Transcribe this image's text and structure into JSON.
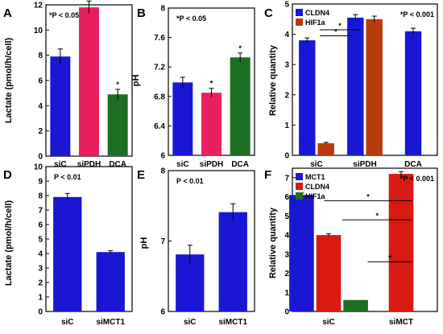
{
  "figure": {
    "panels": [
      {
        "id": "A",
        "label": "A"
      },
      {
        "id": "B",
        "label": "B"
      },
      {
        "id": "C",
        "label": "C"
      },
      {
        "id": "D",
        "label": "D"
      },
      {
        "id": "E",
        "label": "E"
      },
      {
        "id": "F",
        "label": "F"
      }
    ]
  },
  "chart_data": [
    {
      "panel": "A",
      "type": "bar",
      "ylabel": "Lactate (pmol/h/cell)",
      "annotation": "*P < 0.05",
      "ylim": [
        0,
        12
      ],
      "yticks": [
        0,
        2,
        4,
        6,
        8,
        10,
        12
      ],
      "categories": [
        "siC",
        "siPDH",
        "DCA"
      ],
      "values": [
        7.9,
        11.8,
        4.9
      ],
      "errors": [
        0.6,
        0.5,
        0.4
      ],
      "stars": [
        "",
        "*",
        "*"
      ],
      "colors": [
        "#1a17d4",
        "#e8215e",
        "#1e6e22"
      ]
    },
    {
      "panel": "B",
      "type": "bar",
      "ylabel": "pH",
      "annotation": "*P < 0.05",
      "ylim": [
        6.0,
        8.0
      ],
      "yticks": [
        6,
        6.4,
        6.8,
        7.2,
        7.6,
        8
      ],
      "categories": [
        "siC",
        "siPDH",
        "DCA"
      ],
      "values": [
        6.99,
        6.85,
        7.33
      ],
      "errors": [
        0.07,
        0.06,
        0.06
      ],
      "stars": [
        "",
        "*",
        "*"
      ],
      "colors": [
        "#1a17d4",
        "#e8215e",
        "#1e6e22"
      ]
    },
    {
      "panel": "C",
      "type": "bar",
      "ylabel": "Relative quantity",
      "annotation": "*P < 0.001",
      "ylim": [
        0,
        5
      ],
      "yticks": [
        0,
        1,
        2,
        3,
        4,
        5
      ],
      "categories": [
        "siC",
        "siPDH",
        "DCA"
      ],
      "series": [
        {
          "name": "CLDN4",
          "color": "#1a17d4",
          "values": [
            3.8,
            4.55,
            4.1
          ],
          "errors": [
            0.08,
            0.1,
            0.1
          ]
        },
        {
          "name": "HIF1a",
          "color": "#b83a0d",
          "values": [
            0.4,
            4.5,
            null
          ],
          "errors": [
            0.03,
            0.1,
            null
          ]
        }
      ],
      "brackets": [
        {
          "from": "siC",
          "to": "siPDH",
          "level": 4.15,
          "star": "*"
        },
        {
          "from": "siC",
          "to": "siPDH",
          "level": 3.95,
          "star": "*"
        }
      ],
      "legend": "top-left"
    },
    {
      "panel": "D",
      "type": "bar",
      "ylabel": "Lactate (pmol/h/cell)",
      "annotation": "P < 0.01",
      "ylim": [
        0,
        10
      ],
      "yticks": [
        0,
        1,
        2,
        3,
        4,
        5,
        6,
        7,
        8,
        9,
        10
      ],
      "categories": [
        "siC",
        "siMCT1"
      ],
      "values": [
        7.9,
        4.1
      ],
      "errors": [
        0.25,
        0.1
      ],
      "colors": [
        "#1a17d4",
        "#1a17d4"
      ]
    },
    {
      "panel": "E",
      "type": "bar",
      "ylabel": "pH",
      "annotation": "P < 0.01",
      "ylim": [
        6.0,
        8.0
      ],
      "yticks": [
        6,
        7,
        8
      ],
      "categories": [
        "siC",
        "siMCT1"
      ],
      "values": [
        6.81,
        7.41
      ],
      "errors": [
        0.13,
        0.12
      ],
      "colors": [
        "#1a17d4",
        "#1a17d4"
      ]
    },
    {
      "panel": "F",
      "type": "bar",
      "ylabel": "Relative quantity",
      "annotation": "*P < 0.001",
      "ylim": [
        0,
        7.5
      ],
      "yticks": [
        0,
        1,
        2,
        3,
        4,
        5,
        6,
        7
      ],
      "categories": [
        "siC",
        "siMCT"
      ],
      "series": [
        {
          "name": "MCT1",
          "color": "#1a17d4",
          "values": [
            6.1,
            null
          ],
          "errors": [
            0.1,
            null
          ]
        },
        {
          "name": "CLDN4",
          "color": "#d81a12",
          "values": [
            4.0,
            7.2
          ],
          "errors": [
            0.07,
            0.12
          ]
        },
        {
          "name": "HIF1a",
          "color": "#1e6e22",
          "values": [
            0.6,
            null
          ],
          "errors": [
            null,
            null
          ]
        }
      ],
      "brackets": [
        {
          "level": 5.8,
          "star": "*"
        },
        {
          "level": 4.8,
          "star": "*"
        },
        {
          "level": 2.6,
          "star": "*"
        }
      ],
      "legend": "top-left"
    }
  ]
}
